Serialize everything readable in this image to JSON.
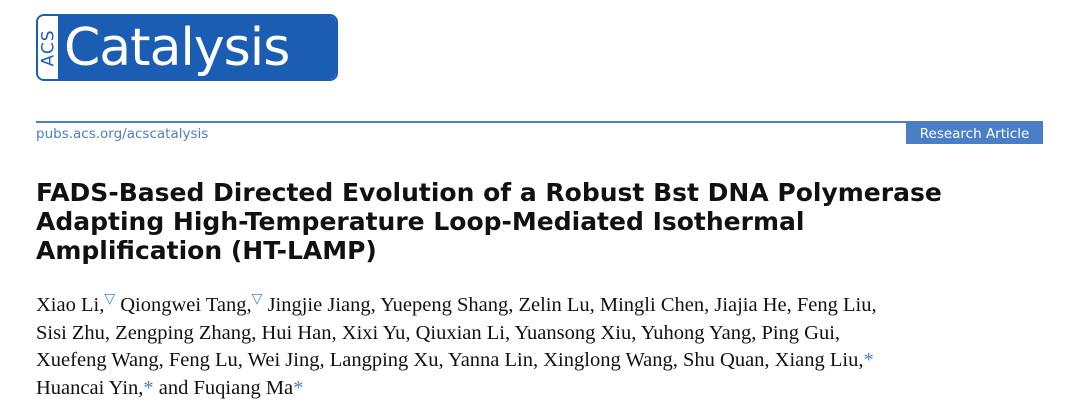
{
  "journal": {
    "logo_prefix": "ACS",
    "logo_name": "Catalysis",
    "url": "pubs.acs.org/acscatalysis",
    "article_type": "Research Article",
    "brand_color": "#1c5db4",
    "accent_color": "#4a7fc6"
  },
  "article": {
    "title_lines": [
      "FADS-Based Directed Evolution of a Robust Bst DNA Polymerase",
      "Adapting High-Temperature Loop-Mediated Isothermal",
      "Amplification (HT-LAMP)"
    ],
    "author_lines": [
      [
        {
          "name": "Xiao Li,",
          "mark": "▽"
        },
        {
          "name": " Qiongwei Tang,",
          "mark": "▽"
        },
        {
          "name": " Jingjie Jiang, Yuepeng Shang, Zelin Lu, Mingli Chen, Jiajia He, Feng Liu,"
        }
      ],
      [
        {
          "name": "Sisi Zhu, Zengping Zhang, Hui Han, Xixi Yu, Qiuxian Li, Yuansong Xiu, Yuhong Yang, Ping Gui,"
        }
      ],
      [
        {
          "name": "Xuefeng Wang, Feng Lu, Wei Jing, Langping Xu, Yanna Lin, Xinglong Wang, Shu Quan, Xiang Liu,",
          "star": "*"
        }
      ],
      [
        {
          "name": "Huancai Yin,",
          "star": "*"
        },
        {
          "name": " and Fuqiang Ma",
          "star": "*"
        }
      ]
    ]
  }
}
